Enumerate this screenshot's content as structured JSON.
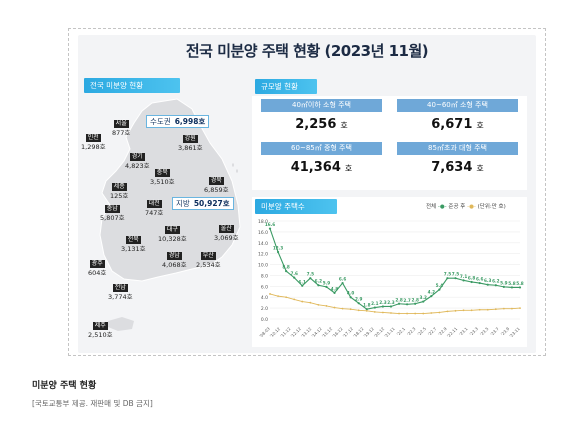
{
  "title": "전국 미분양 주택 현황 (2023년 11월)",
  "nation_header": "전국 미분양 현황",
  "capital": {
    "label": "수도권",
    "value": "6,998호"
  },
  "local": {
    "label": "지방",
    "value": "50,927호"
  },
  "regions": [
    {
      "name": "인천",
      "value": "1,298호"
    },
    {
      "name": "서울",
      "value": "877호"
    },
    {
      "name": "강원",
      "value": "3,861호"
    },
    {
      "name": "경기",
      "value": "4,823호"
    },
    {
      "name": "충북",
      "value": "3,510호"
    },
    {
      "name": "세종",
      "value": "125호"
    },
    {
      "name": "경북",
      "value": "6,859호"
    },
    {
      "name": "충남",
      "value": "5,807호"
    },
    {
      "name": "대전",
      "value": "747호"
    },
    {
      "name": "울산",
      "value": "3,069호"
    },
    {
      "name": "전북",
      "value": "3,131호"
    },
    {
      "name": "대구",
      "value": "10,328호"
    },
    {
      "name": "광주",
      "value": "604호"
    },
    {
      "name": "경남",
      "value": "4,068호"
    },
    {
      "name": "부산",
      "value": "2,534호"
    },
    {
      "name": "전남",
      "value": "3,774호"
    },
    {
      "name": "제주",
      "value": "2,510호"
    }
  ],
  "size_header": "규모별 현황",
  "sizes": [
    {
      "label": "40㎡이하 소형 주택",
      "value": "2,256",
      "unit": "호"
    },
    {
      "label": "40~60㎡ 소형 주택",
      "value": "6,671",
      "unit": "호"
    },
    {
      "label": "60~85㎡ 중형 주택",
      "value": "41,364",
      "unit": "호"
    },
    {
      "label": "85㎡초과 대형 주택",
      "value": "7,634",
      "unit": "호"
    }
  ],
  "trend_header": "미분양 주택수",
  "legend": {
    "total": "전체",
    "completed": "준공 후",
    "unit": "(단위:만 호)"
  },
  "colors": {
    "total": "#3a9a63",
    "completed": "#e0b85a",
    "accent": "#2ca9e1"
  },
  "chart_data": {
    "type": "line",
    "ylim": [
      0,
      18
    ],
    "yticks": [
      "18.0",
      "16.0",
      "14.0",
      "12.0",
      "10.0",
      "8.0",
      "6.0",
      "4.0",
      "2.0",
      "0.0"
    ],
    "xticks": [
      "'08.03",
      "'10.12",
      "'11.12",
      "'12.12",
      "'13.12",
      "'14.12",
      "'15.12",
      "'16.12",
      "'17.12",
      "'18.12",
      "'19.12",
      "'20.12",
      "'21.11",
      "'22.1",
      "'22.3",
      "'22.5",
      "'22.7",
      "'22.9",
      "'22.11",
      "'23.1",
      "'23.3",
      "'23.5",
      "'23.7",
      "'23.9",
      "'23.11"
    ],
    "series": [
      {
        "name": "전체",
        "values": [
          16.6,
          12.3,
          8.8,
          7.6,
          6.1,
          7.5,
          6.2,
          5.9,
          4.8,
          6.6,
          4.0,
          2.9,
          1.8,
          2.1,
          2.3,
          2.3,
          2.8,
          2.7,
          2.8,
          3.2,
          4.2,
          5.4,
          7.5,
          7.5,
          7.1,
          6.8,
          6.6,
          6.3,
          6.2,
          5.9,
          5.8,
          5.8
        ],
        "labels": [
          "16.6",
          "12.3",
          "8.8",
          "7.6",
          "6.1",
          "7.5",
          "6.2",
          "5.9",
          "4.8",
          "6.6",
          "4.0",
          "2.9",
          "1.8",
          "2.1",
          "2.3",
          "2.3",
          "2.8",
          "2.7",
          "2.8",
          "3.2",
          "4.2",
          "5.4",
          "7.5",
          "7.5",
          "7.1",
          "6.8",
          "6.6",
          "6.3",
          "6.2",
          "5.9",
          "5.8",
          "5.8"
        ]
      },
      {
        "name": "준공 후",
        "values": [
          4.6,
          4.2,
          4.0,
          3.6,
          3.2,
          3.0,
          2.6,
          2.4,
          2.1,
          1.9,
          1.8,
          1.6,
          1.5,
          1.3,
          1.2,
          1.1,
          1.0,
          1.0,
          1.0,
          1.0,
          1.1,
          1.2,
          1.4,
          1.5,
          1.6,
          1.6,
          1.7,
          1.7,
          1.8,
          1.9,
          1.9,
          2.0
        ],
        "labels": []
      }
    ]
  },
  "caption": "미분양 주택 현황",
  "source": "[국토교통부 제공. 재판매 및 DB 금지]"
}
